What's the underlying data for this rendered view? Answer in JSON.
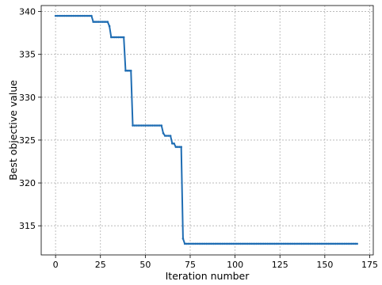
{
  "chart_data": {
    "type": "line",
    "title": "",
    "xlabel": "Iteration number",
    "ylabel": "Best objective value",
    "xlim": [
      -8,
      177
    ],
    "ylim": [
      311.6,
      340.7
    ],
    "xticks": [
      0,
      25,
      50,
      75,
      100,
      125,
      150,
      175
    ],
    "xtick_labels": [
      "0",
      "25",
      "50",
      "75",
      "100",
      "125",
      "150",
      "175"
    ],
    "yticks": [
      315,
      320,
      325,
      330,
      335,
      340
    ],
    "ytick_labels": [
      "315",
      "320",
      "325",
      "330",
      "335",
      "340"
    ],
    "grid": true,
    "legend": "none",
    "line_color": "#1f6db3",
    "series": [
      {
        "name": "",
        "segments": [
          {
            "from": 0,
            "to": 20,
            "y": 339.5
          },
          {
            "from": 21,
            "to": 29,
            "y": 338.8
          },
          {
            "from": 30,
            "to": 30,
            "y": 338.3
          },
          {
            "from": 31,
            "to": 38,
            "y": 337.0
          },
          {
            "from": 39,
            "to": 42,
            "y": 333.1
          },
          {
            "from": 43,
            "to": 59,
            "y": 326.7
          },
          {
            "from": 60,
            "to": 60,
            "y": 325.8
          },
          {
            "from": 61,
            "to": 64,
            "y": 325.5
          },
          {
            "from": 65,
            "to": 66,
            "y": 324.6
          },
          {
            "from": 67,
            "to": 70,
            "y": 324.2
          },
          {
            "from": 71,
            "to": 71,
            "y": 313.5
          },
          {
            "from": 72,
            "to": 168,
            "y": 312.9
          }
        ]
      }
    ]
  }
}
